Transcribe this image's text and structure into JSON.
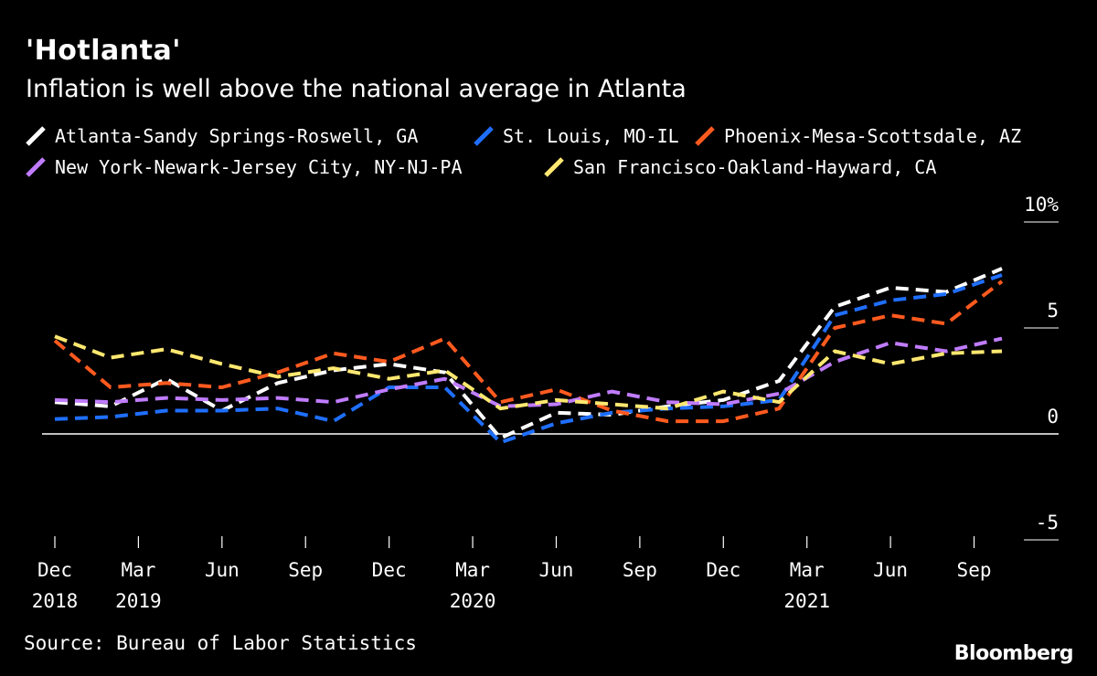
{
  "header": {
    "title": "'Hotlanta'",
    "subtitle": "Inflation is well above the national average in Atlanta"
  },
  "footer": {
    "source": "Source: Bureau of Labor Statistics",
    "brand": "Bloomberg"
  },
  "chart_data": {
    "type": "line",
    "title": "'Hotlanta'",
    "subtitle": "Inflation is well above the national average in Atlanta",
    "x": [
      "2018-12",
      "2019-02",
      "2019-04",
      "2019-06",
      "2019-08",
      "2019-10",
      "2019-12",
      "2020-02",
      "2020-04",
      "2020-06",
      "2020-08",
      "2020-10",
      "2020-12",
      "2021-02",
      "2021-04",
      "2021-06",
      "2021-08",
      "2021-10"
    ],
    "series": [
      {
        "name": "Atlanta-Sandy Springs-Roswell, GA",
        "color": "#ffffff",
        "values": [
          1.5,
          1.3,
          2.6,
          1.1,
          2.4,
          3.0,
          3.3,
          2.9,
          -0.2,
          1.0,
          0.9,
          1.3,
          1.6,
          2.5,
          6.0,
          6.9,
          6.7,
          7.8
        ]
      },
      {
        "name": "St. Louis, MO-IL",
        "color": "#1f6fff",
        "values": [
          0.7,
          0.8,
          1.1,
          1.1,
          1.2,
          0.6,
          2.2,
          2.2,
          -0.4,
          0.5,
          1.0,
          1.2,
          1.3,
          1.6,
          5.6,
          6.3,
          6.6,
          7.5
        ]
      },
      {
        "name": "Phoenix-Mesa-Scottsdale, AZ",
        "color": "#ff5a1f",
        "values": [
          4.4,
          2.2,
          2.4,
          2.2,
          2.9,
          3.8,
          3.4,
          4.5,
          1.5,
          2.1,
          1.1,
          0.6,
          0.6,
          1.2,
          5.0,
          5.6,
          5.2,
          7.2
        ]
      },
      {
        "name": "New York-Newark-Jersey City, NY-NJ-PA",
        "color": "#c07cff",
        "values": [
          1.6,
          1.5,
          1.7,
          1.6,
          1.7,
          1.5,
          2.1,
          2.6,
          1.3,
          1.4,
          2.0,
          1.5,
          1.4,
          1.9,
          3.4,
          4.3,
          3.9,
          4.5
        ]
      },
      {
        "name": "San Francisco-Oakland-Hayward, CA",
        "color": "#ffe870",
        "values": [
          4.6,
          3.6,
          4.0,
          3.3,
          2.7,
          3.1,
          2.6,
          3.0,
          1.2,
          1.6,
          1.4,
          1.2,
          2.0,
          1.5,
          3.9,
          3.3,
          3.8,
          3.9
        ]
      }
    ],
    "xlabel": "",
    "ylabel": "",
    "ylim": [
      -5,
      10
    ],
    "yticks": [
      {
        "value": 10,
        "label": "10%"
      },
      {
        "value": 5,
        "label": "5"
      },
      {
        "value": 0,
        "label": "0"
      },
      {
        "value": -5,
        "label": "-5"
      }
    ],
    "xticks": [
      {
        "x": "2018-12",
        "month": "Dec",
        "year": "2018"
      },
      {
        "x": "2019-03",
        "month": "Mar",
        "year": "2019"
      },
      {
        "x": "2019-06",
        "month": "Jun",
        "year": ""
      },
      {
        "x": "2019-09",
        "month": "Sep",
        "year": ""
      },
      {
        "x": "2019-12",
        "month": "Dec",
        "year": ""
      },
      {
        "x": "2020-03",
        "month": "Mar",
        "year": "2020"
      },
      {
        "x": "2020-06",
        "month": "Jun",
        "year": ""
      },
      {
        "x": "2020-09",
        "month": "Sep",
        "year": ""
      },
      {
        "x": "2020-12",
        "month": "Dec",
        "year": ""
      },
      {
        "x": "2021-03",
        "month": "Mar",
        "year": "2021"
      },
      {
        "x": "2021-06",
        "month": "Jun",
        "year": ""
      },
      {
        "x": "2021-09",
        "month": "Sep",
        "year": ""
      }
    ],
    "legend_position": "top"
  }
}
